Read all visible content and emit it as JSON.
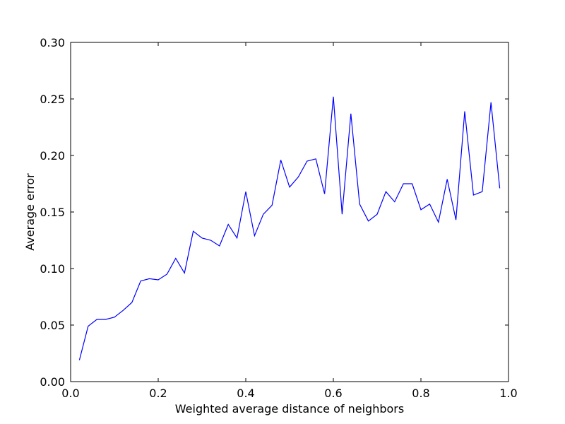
{
  "chart_data": {
    "type": "line",
    "title": "",
    "xlabel": "Weighted average distance of neighbors",
    "ylabel": "Average error",
    "xlim": [
      0.0,
      1.0
    ],
    "ylim": [
      0.0,
      0.3
    ],
    "grid": false,
    "x_ticks": [
      0.0,
      0.2,
      0.4,
      0.6,
      0.8,
      1.0
    ],
    "x_tick_labels": [
      "0.0",
      "0.2",
      "0.4",
      "0.6",
      "0.8",
      "1.0"
    ],
    "y_ticks": [
      0.0,
      0.05,
      0.1,
      0.15,
      0.2,
      0.25,
      0.3
    ],
    "y_tick_labels": [
      "0.00",
      "0.05",
      "0.10",
      "0.15",
      "0.20",
      "0.25",
      "0.30"
    ],
    "series": [
      {
        "color": "#0000ff",
        "x": [
          0.02,
          0.04,
          0.06,
          0.08,
          0.1,
          0.12,
          0.14,
          0.16,
          0.18,
          0.2,
          0.22,
          0.24,
          0.26,
          0.28,
          0.3,
          0.32,
          0.34,
          0.36,
          0.38,
          0.4,
          0.42,
          0.44,
          0.46,
          0.48,
          0.5,
          0.52,
          0.54,
          0.56,
          0.58,
          0.6,
          0.62,
          0.64,
          0.66,
          0.68,
          0.7,
          0.72,
          0.74,
          0.76,
          0.78,
          0.8,
          0.82,
          0.84,
          0.86,
          0.88,
          0.9,
          0.92,
          0.94,
          0.96,
          0.98
        ],
        "y": [
          0.019,
          0.049,
          0.055,
          0.055,
          0.057,
          0.063,
          0.07,
          0.089,
          0.091,
          0.09,
          0.095,
          0.109,
          0.096,
          0.133,
          0.127,
          0.125,
          0.12,
          0.139,
          0.127,
          0.168,
          0.129,
          0.148,
          0.156,
          0.196,
          0.172,
          0.181,
          0.195,
          0.197,
          0.166,
          0.252,
          0.148,
          0.237,
          0.157,
          0.142,
          0.148,
          0.168,
          0.159,
          0.175,
          0.175,
          0.152,
          0.157,
          0.141,
          0.179,
          0.143,
          0.239,
          0.165,
          0.168,
          0.247,
          0.171
        ]
      }
    ]
  }
}
